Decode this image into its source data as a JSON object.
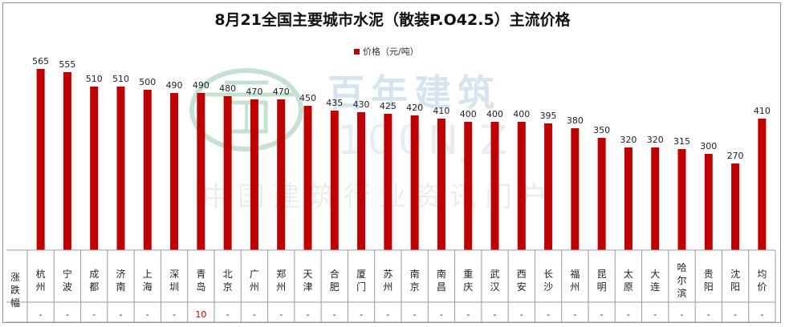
{
  "chart_data": {
    "type": "bar",
    "title": "8月21全国主要城市水泥（散装P.O42.5）主流价格",
    "legend": [
      "价格（元/吨）"
    ],
    "legend_position": "top-center",
    "grid": false,
    "colors": {
      "bar": "#c00000"
    },
    "categories": [
      "杭州",
      "宁波",
      "成都",
      "济南",
      "上海",
      "深圳",
      "青岛",
      "北京",
      "广州",
      "郑州",
      "天津",
      "合肥",
      "厦门",
      "苏州",
      "南京",
      "南昌",
      "重庆",
      "武汉",
      "西安",
      "长沙",
      "福州",
      "昆明",
      "太原",
      "大连",
      "哈尔滨",
      "贵阳",
      "沈阳",
      "均价"
    ],
    "series": [
      {
        "name": "价格（元/吨）",
        "values": [
          565,
          555,
          510,
          510,
          500,
          490,
          490,
          480,
          470,
          470,
          450,
          435,
          430,
          425,
          420,
          410,
          400,
          400,
          400,
          395,
          380,
          350,
          320,
          320,
          315,
          300,
          270,
          410
        ]
      }
    ],
    "ylim": [
      0,
      600
    ],
    "table": {
      "row_label": "涨跌幅",
      "values": [
        "-",
        "-",
        "-",
        "-",
        "-",
        "-",
        "10",
        "-",
        "-",
        "-",
        "-",
        "-",
        "-",
        "-",
        "-",
        "-",
        "-",
        "-",
        "-",
        "-",
        "-",
        "-",
        "-",
        "-",
        "-",
        "-",
        "-",
        "-"
      ]
    }
  },
  "watermark": {
    "brand_cn": "百年建筑",
    "brand_en": "100NJZ",
    "tagline": "中国建筑行业资讯门户"
  }
}
